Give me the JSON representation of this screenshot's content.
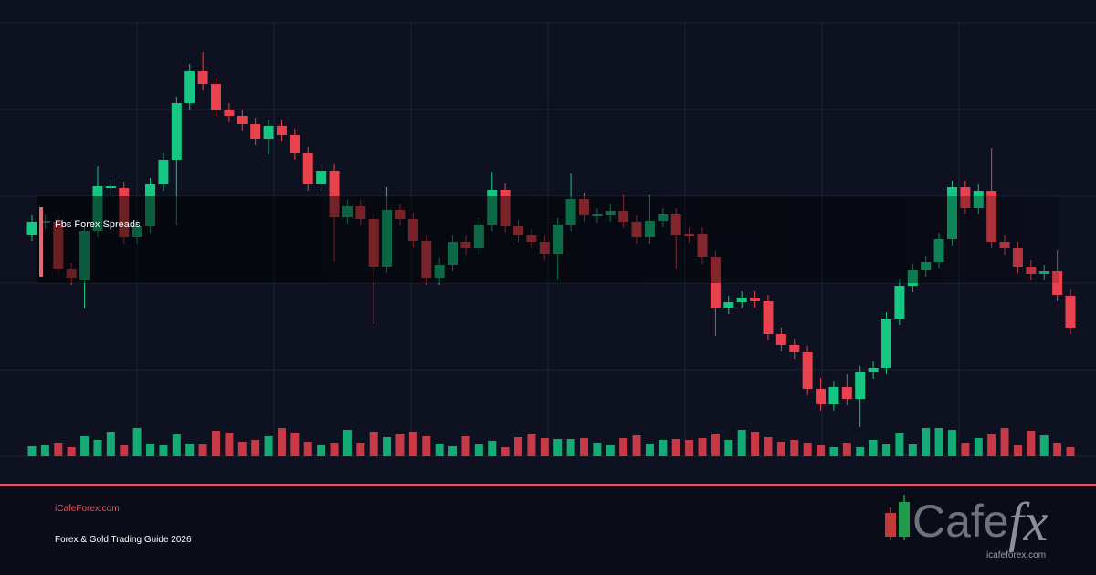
{
  "title": "Fbs Forex Spreads",
  "site": "iCafeForex.com",
  "subtitle": "Forex & Gold Trading Guide 2026",
  "logo": {
    "text": "Cafe",
    "accent": "fx",
    "url": "icafeforex.com"
  },
  "chart_data": {
    "type": "candlestick",
    "up_color": "#16c784",
    "down_color": "#e8424f",
    "grid": true,
    "ylim": [
      0,
      475
    ],
    "volume_lim": [
      0,
      475
    ],
    "open": [
      243,
      256,
      257,
      205,
      193,
      247,
      294,
      294,
      240,
      252,
      298,
      325,
      387,
      422,
      408,
      380,
      373,
      364,
      348,
      362,
      352,
      332,
      298,
      313,
      262,
      274,
      260,
      208,
      270,
      260,
      236,
      195,
      210,
      235,
      228,
      254,
      292,
      252,
      242,
      235,
      222,
      254,
      282,
      263,
      264,
      269,
      257,
      240,
      258,
      265,
      244,
      244,
      218,
      163,
      169,
      174,
      170,
      134,
      122,
      114,
      74,
      57,
      76,
      63,
      92,
      97,
      151,
      187,
      204,
      213,
      238,
      295,
      272,
      291,
      235,
      228,
      208,
      200,
      203,
      176
    ],
    "high": [
      264,
      265,
      264,
      212,
      254,
      318,
      303,
      301,
      259,
      305,
      332,
      394,
      430,
      443,
      415,
      387,
      380,
      371,
      369,
      369,
      359,
      339,
      320,
      320,
      281,
      281,
      267,
      295,
      277,
      267,
      243,
      217,
      242,
      242,
      261,
      312,
      299,
      259,
      249,
      242,
      261,
      310,
      289,
      272,
      276,
      286,
      264,
      286,
      272,
      272,
      251,
      251,
      225,
      176,
      181,
      181,
      177,
      141,
      129,
      121,
      86,
      83,
      90,
      99,
      104,
      158,
      194,
      211,
      220,
      245,
      302,
      302,
      298,
      338,
      242,
      235,
      215,
      210,
      226,
      183
    ],
    "low": [
      236,
      249,
      198,
      188,
      162,
      240,
      287,
      233,
      233,
      245,
      291,
      253,
      380,
      401,
      373,
      366,
      357,
      341,
      331,
      345,
      325,
      291,
      291,
      213,
      255,
      253,
      145,
      201,
      253,
      229,
      188,
      188,
      203,
      221,
      221,
      247,
      245,
      235,
      228,
      215,
      193,
      247,
      257,
      256,
      257,
      250,
      233,
      233,
      251,
      205,
      234,
      211,
      132,
      156,
      162,
      163,
      127,
      115,
      107,
      67,
      50,
      50,
      56,
      32,
      85,
      90,
      144,
      180,
      197,
      206,
      231,
      265,
      265,
      228,
      221,
      201,
      193,
      193,
      170,
      134
    ],
    "close": [
      257,
      258,
      205,
      195,
      247,
      296,
      296,
      240,
      252,
      298,
      325,
      387,
      422,
      408,
      380,
      373,
      364,
      348,
      362,
      352,
      332,
      298,
      313,
      262,
      274,
      260,
      208,
      270,
      260,
      236,
      195,
      210,
      235,
      228,
      254,
      292,
      252,
      242,
      235,
      222,
      254,
      282,
      264,
      265,
      269,
      257,
      240,
      258,
      265,
      242,
      241,
      218,
      163,
      169,
      174,
      170,
      134,
      122,
      114,
      74,
      57,
      76,
      63,
      92,
      97,
      151,
      187,
      204,
      213,
      238,
      295,
      272,
      291,
      235,
      228,
      208,
      200,
      203,
      177,
      141
    ],
    "volume": [
      11,
      12,
      15,
      10,
      22,
      18,
      27,
      12,
      31,
      14,
      12,
      24,
      14,
      13,
      28,
      26,
      16,
      18,
      22,
      31,
      26,
      16,
      12,
      15,
      29,
      15,
      27,
      21,
      25,
      27,
      22,
      14,
      11,
      22,
      13,
      17,
      10,
      21,
      25,
      20,
      19,
      19,
      20,
      15,
      12,
      20,
      23,
      14,
      18,
      19,
      18,
      20,
      25,
      18,
      29,
      27,
      21,
      16,
      18,
      15,
      12,
      10,
      15,
      10,
      18,
      13,
      26,
      13,
      31,
      31,
      29,
      15,
      20,
      24,
      31,
      12,
      28,
      23,
      15,
      10
    ]
  }
}
